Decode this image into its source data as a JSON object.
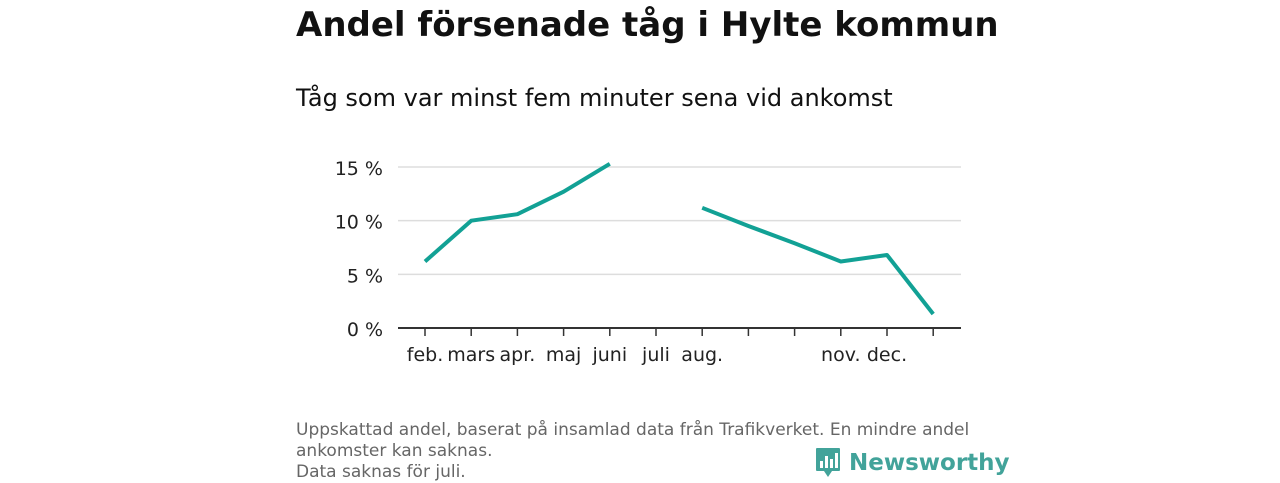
{
  "title": "Andel försenade tåg i Hylte kommun",
  "subtitle": "Tåg som var minst fem minuter sena vid ankomst",
  "footnote": {
    "line1": "Uppskattad andel, baserat på insamlad data från Trafikverket. En mindre andel",
    "line2": "ankomster kan saknas.",
    "line3": "Data saknas för juli."
  },
  "logo": {
    "text": "Newsworthy",
    "color": "#42a39a",
    "icon": "bar-chart-speech-bubble-icon"
  },
  "colors": {
    "line": "#12a195",
    "grid": "#dddddd",
    "axis": "#333333"
  },
  "chart_data": {
    "type": "line",
    "title": "Andel försenade tåg i Hylte kommun",
    "subtitle": "Tåg som var minst fem minuter sena vid ankomst",
    "xlabel": "",
    "ylabel": "",
    "ylim": [
      0,
      15
    ],
    "y_ticks": [
      {
        "value": 0,
        "label": "0 %"
      },
      {
        "value": 5,
        "label": "5 %"
      },
      {
        "value": 10,
        "label": "10 %"
      },
      {
        "value": 15,
        "label": "15 %"
      }
    ],
    "x_ticks": [
      {
        "index": 0,
        "label": "feb."
      },
      {
        "index": 1,
        "label": "mars"
      },
      {
        "index": 2,
        "label": "apr."
      },
      {
        "index": 3,
        "label": "maj"
      },
      {
        "index": 4,
        "label": "juni"
      },
      {
        "index": 5,
        "label": "juli"
      },
      {
        "index": 6,
        "label": "aug."
      },
      {
        "index": 7,
        "label": ""
      },
      {
        "index": 8,
        "label": ""
      },
      {
        "index": 9,
        "label": "nov."
      },
      {
        "index": 10,
        "label": "dec."
      },
      {
        "index": 11,
        "label": ""
      }
    ],
    "grid": true,
    "legend": "none",
    "series": [
      {
        "values": [
          6.2,
          10.0,
          10.6,
          12.7,
          15.3,
          null,
          11.2,
          9.5,
          7.9,
          6.2,
          6.8,
          1.3
        ]
      }
    ]
  }
}
